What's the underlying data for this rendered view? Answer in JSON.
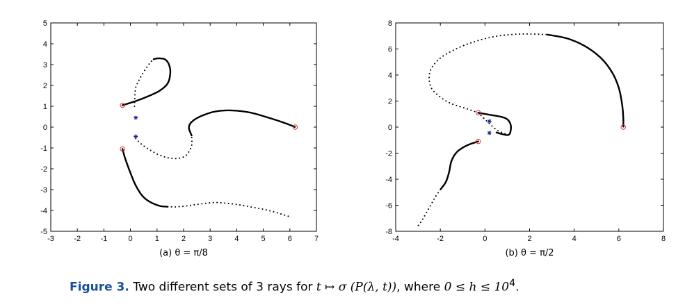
{
  "caption": {
    "label": "Figure 3.",
    "text_before": " Two different sets of 3 rays for ",
    "math_map": "t ↦ σ (P(λ, t))",
    "text_mid": ", where ",
    "math_cond": "0 ≤ h ≤ 10",
    "exponent": "4",
    "text_end": "."
  },
  "colors": {
    "ray": "#000000",
    "start_marker": "#e03030",
    "star_marker": "#1a1aa0"
  },
  "chart_data": [
    {
      "type": "scatter",
      "title": "",
      "subcaption": "(a)  θ = π/8",
      "xlabel": "",
      "ylabel": "",
      "xlim": [
        -3,
        7
      ],
      "ylim": [
        -5,
        5
      ],
      "xticks": [
        -3,
        -2,
        -1,
        0,
        1,
        2,
        3,
        4,
        5,
        6,
        7
      ],
      "yticks": [
        -5,
        -4,
        -3,
        -2,
        -1,
        0,
        1,
        2,
        3,
        4,
        5
      ],
      "grid": false,
      "circle_markers": [
        [
          -0.3,
          1.05
        ],
        [
          -0.3,
          -1.05
        ],
        [
          6.2,
          0.0
        ]
      ],
      "star_markers": [
        [
          0.2,
          0.45
        ],
        [
          0.2,
          -0.45
        ]
      ],
      "series": [
        {
          "dense": false,
          "points": [
            [
              0.15,
              1.0
            ],
            [
              0.16,
              1.3
            ],
            [
              0.17,
              1.6
            ],
            [
              0.2,
              1.9
            ],
            [
              0.3,
              2.2
            ],
            [
              0.45,
              2.55
            ],
            [
              0.6,
              2.85
            ],
            [
              0.75,
              3.1
            ],
            [
              0.85,
              3.25
            ]
          ]
        },
        {
          "dense": true,
          "points": [
            [
              -0.3,
              1.05
            ],
            [
              0.2,
              1.25
            ],
            [
              0.7,
              1.5
            ],
            [
              1.1,
              1.75
            ],
            [
              1.4,
              2.1
            ],
            [
              1.5,
              2.6
            ],
            [
              1.45,
              3.0
            ],
            [
              1.3,
              3.25
            ],
            [
              1.05,
              3.3
            ],
            [
              0.85,
              3.25
            ]
          ]
        },
        {
          "dense": false,
          "points": [
            [
              0.2,
              -0.55
            ],
            [
              0.35,
              -0.75
            ],
            [
              0.55,
              -0.95
            ],
            [
              0.8,
              -1.15
            ],
            [
              1.1,
              -1.35
            ],
            [
              1.45,
              -1.48
            ],
            [
              1.8,
              -1.5
            ],
            [
              2.1,
              -1.35
            ],
            [
              2.3,
              -0.9
            ],
            [
              2.3,
              -0.4
            ]
          ]
        },
        {
          "dense": true,
          "points": [
            [
              2.3,
              -0.4
            ],
            [
              2.2,
              0.0
            ],
            [
              2.35,
              0.3
            ],
            [
              2.7,
              0.55
            ],
            [
              3.2,
              0.75
            ],
            [
              3.8,
              0.8
            ],
            [
              4.5,
              0.7
            ],
            [
              5.2,
              0.45
            ],
            [
              5.8,
              0.2
            ],
            [
              6.2,
              0.0
            ]
          ]
        },
        {
          "dense": true,
          "points": [
            [
              -0.3,
              -1.05
            ],
            [
              -0.2,
              -1.5
            ],
            [
              0.0,
              -2.2
            ],
            [
              0.2,
              -2.8
            ],
            [
              0.45,
              -3.3
            ],
            [
              0.75,
              -3.6
            ],
            [
              1.1,
              -3.78
            ],
            [
              1.4,
              -3.82
            ]
          ]
        },
        {
          "dense": false,
          "points": [
            [
              1.4,
              -3.82
            ],
            [
              1.7,
              -3.83
            ],
            [
              2.0,
              -3.8
            ],
            [
              2.3,
              -3.75
            ],
            [
              2.7,
              -3.68
            ],
            [
              3.2,
              -3.62
            ],
            [
              3.8,
              -3.68
            ],
            [
              4.4,
              -3.8
            ],
            [
              5.2,
              -4.0
            ],
            [
              6.0,
              -4.3
            ]
          ]
        }
      ]
    },
    {
      "type": "scatter",
      "title": "",
      "subcaption": "(b)  θ = π/2",
      "xlabel": "",
      "ylabel": "",
      "xlim": [
        -4,
        8
      ],
      "ylim": [
        -8,
        8
      ],
      "xticks": [
        -4,
        -2,
        0,
        2,
        4,
        6,
        8
      ],
      "yticks": [
        -8,
        -6,
        -4,
        -2,
        0,
        2,
        4,
        6,
        8
      ],
      "grid": false,
      "circle_markers": [
        [
          -0.3,
          1.1
        ],
        [
          -0.3,
          -1.1
        ],
        [
          6.2,
          0.0
        ]
      ],
      "star_markers": [
        [
          0.2,
          0.45
        ],
        [
          0.2,
          -0.45
        ]
      ],
      "series": [
        {
          "dense": true,
          "points": [
            [
              -0.3,
              1.1
            ],
            [
              0.2,
              0.95
            ],
            [
              0.7,
              0.8
            ],
            [
              1.0,
              0.6
            ],
            [
              1.15,
              0.2
            ],
            [
              1.15,
              -0.3
            ],
            [
              1.05,
              -0.6
            ],
            [
              0.8,
              -0.55
            ],
            [
              0.5,
              -0.4
            ]
          ]
        },
        {
          "dense": false,
          "points": [
            [
              -0.3,
              1.1
            ],
            [
              -0.8,
              1.4
            ],
            [
              -1.5,
              1.8
            ],
            [
              -2.0,
              2.3
            ],
            [
              -2.4,
              3.0
            ],
            [
              -2.5,
              3.8
            ],
            [
              -2.4,
              4.5
            ],
            [
              -2.0,
              5.3
            ],
            [
              -1.3,
              6.0
            ],
            [
              -0.4,
              6.6
            ],
            [
              0.6,
              7.0
            ],
            [
              1.7,
              7.15
            ],
            [
              2.8,
              7.1
            ]
          ]
        },
        {
          "dense": true,
          "points": [
            [
              2.8,
              7.1
            ],
            [
              3.7,
              6.8
            ],
            [
              4.5,
              6.2
            ],
            [
              5.2,
              5.3
            ],
            [
              5.7,
              4.2
            ],
            [
              6.0,
              3.0
            ],
            [
              6.15,
              1.7
            ],
            [
              6.2,
              0.7
            ],
            [
              6.2,
              0.0
            ]
          ]
        },
        {
          "dense": false,
          "points": [
            [
              -0.3,
              1.1
            ],
            [
              0.0,
              0.6
            ],
            [
              0.3,
              0.1
            ],
            [
              0.6,
              -0.3
            ],
            [
              0.9,
              -0.5
            ],
            [
              1.05,
              -0.6
            ]
          ]
        },
        {
          "dense": true,
          "points": [
            [
              -0.3,
              -1.1
            ],
            [
              -0.8,
              -1.4
            ],
            [
              -1.25,
              -1.9
            ],
            [
              -1.5,
              -2.6
            ],
            [
              -1.6,
              -3.4
            ],
            [
              -1.75,
              -4.2
            ],
            [
              -2.0,
              -4.8
            ]
          ]
        },
        {
          "dense": false,
          "points": [
            [
              -2.0,
              -4.8
            ],
            [
              -2.2,
              -5.3
            ],
            [
              -2.4,
              -5.9
            ],
            [
              -2.6,
              -6.5
            ],
            [
              -2.8,
              -7.1
            ],
            [
              -3.0,
              -7.6
            ]
          ]
        }
      ]
    }
  ]
}
